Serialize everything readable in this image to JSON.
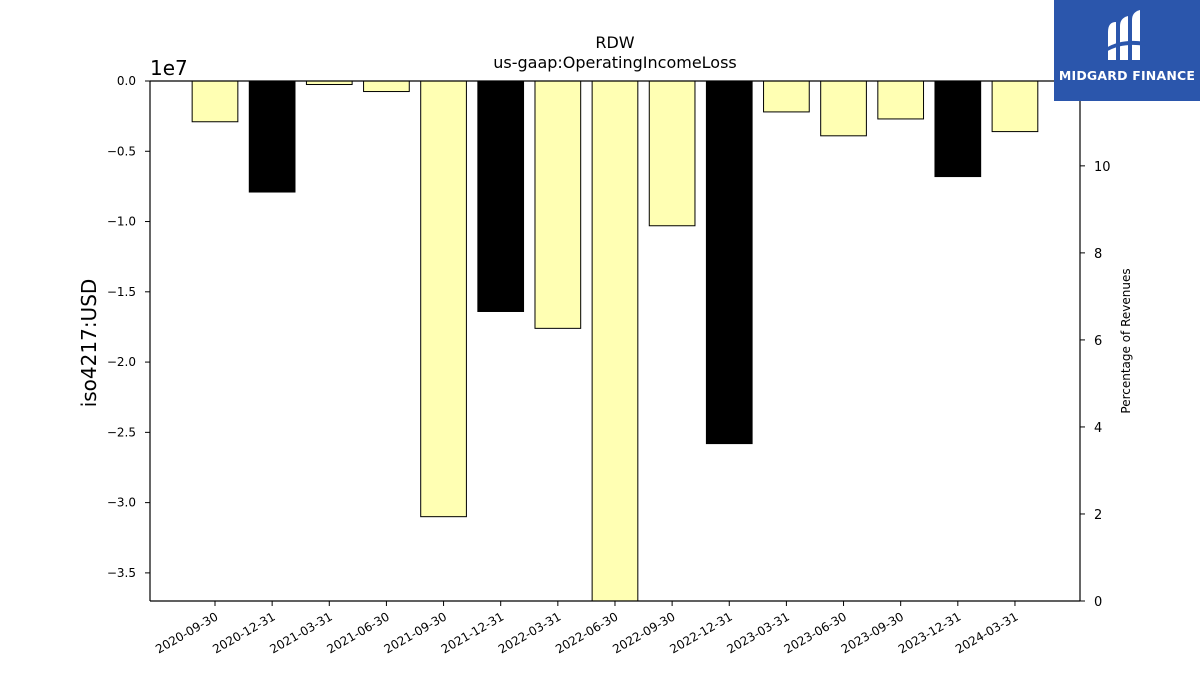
{
  "chart_data": {
    "type": "bar",
    "title": "RDW",
    "subtitle": "us-gaap:OperatingIncomeLoss",
    "ylabel": "iso4217:USD",
    "y_offset_label": "1e7",
    "y2label": "Percentage of Revenues",
    "categories": [
      "2020-09-30",
      "2020-12-31",
      "2021-03-31",
      "2021-06-30",
      "2021-09-30",
      "2021-12-31",
      "2022-03-31",
      "2022-06-30",
      "2022-09-30",
      "2022-12-31",
      "2023-03-31",
      "2023-06-30",
      "2023-09-30",
      "2023-12-31",
      "2024-03-31"
    ],
    "values": [
      -2900000,
      -7900000,
      -250000,
      -750000,
      -31000000,
      -16400000,
      -17600000,
      -37000000,
      -10300000,
      -25800000,
      -2200000,
      -3900000,
      -2700000,
      -6800000,
      -3600000
    ],
    "bar_colors": [
      "#ffffb3",
      "#000000",
      "#ffffb3",
      "#ffffb3",
      "#ffffb3",
      "#000000",
      "#ffffb3",
      "#ffffb3",
      "#ffffb3",
      "#000000",
      "#ffffb3",
      "#ffffb3",
      "#ffffb3",
      "#000000",
      "#ffffb3"
    ],
    "ylim": [
      -37000000,
      0
    ],
    "yticks": [
      {
        "value": 0,
        "label": "0.0"
      },
      {
        "value": -5000000,
        "label": "−0.5"
      },
      {
        "value": -10000000,
        "label": "−1.0"
      },
      {
        "value": -15000000,
        "label": "−1.5"
      },
      {
        "value": -20000000,
        "label": "−2.0"
      },
      {
        "value": -25000000,
        "label": "−2.5"
      },
      {
        "value": -30000000,
        "label": "−3.0"
      },
      {
        "value": -35000000,
        "label": "−3.5"
      }
    ],
    "y2lim": [
      0,
      11.95
    ],
    "y2ticks": [
      {
        "value": 0,
        "label": "0"
      },
      {
        "value": 2,
        "label": "2"
      },
      {
        "value": 4,
        "label": "4"
      },
      {
        "value": 6,
        "label": "6"
      },
      {
        "value": 8,
        "label": "8"
      },
      {
        "value": 10,
        "label": "10"
      }
    ],
    "grid": false,
    "legend": "none"
  },
  "logo": {
    "text": "MIDGARD FINANCE",
    "background": "#2b56ac",
    "icon": "midgard-logo-icon"
  }
}
